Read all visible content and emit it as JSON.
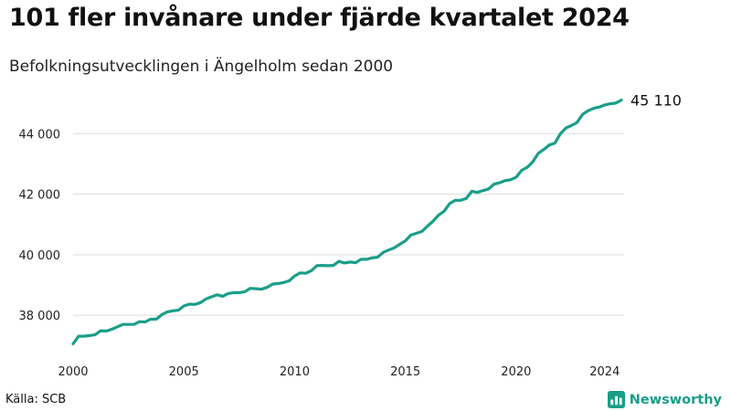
{
  "title": "101 fler invånare under fjärde kvartalet 2024",
  "subtitle": "Befolkningsutvecklingen i Ängelholm sedan 2000",
  "source": "Källa: SCB",
  "brand": {
    "name": "Newsworthy",
    "icon": "bar-chart-icon",
    "color": "#1a9e88"
  },
  "colors": {
    "line": "#1a9e88",
    "grid": "#dddddd"
  },
  "chart_data": {
    "type": "line",
    "title": "101 fler invånare under fjärde kvartalet 2024",
    "subtitle": "Befolkningsutvecklingen i Ängelholm sedan 2000",
    "xlabel": "",
    "ylabel": "",
    "x_ticks": [
      {
        "value": 2000,
        "label": "2000"
      },
      {
        "value": 2005,
        "label": "2005"
      },
      {
        "value": 2010,
        "label": "2010"
      },
      {
        "value": 2015,
        "label": "2015"
      },
      {
        "value": 2020,
        "label": "2020"
      },
      {
        "value": 2024,
        "label": "2024"
      }
    ],
    "y_ticks": [
      {
        "value": 38000,
        "label": "38 000"
      },
      {
        "value": 40000,
        "label": "40 000"
      },
      {
        "value": 42000,
        "label": "42 000"
      },
      {
        "value": 44000,
        "label": "44 000"
      }
    ],
    "xlim": [
      2000,
      2024.75
    ],
    "ylim": [
      36800,
      45400
    ],
    "grid": true,
    "end_label": "45 110",
    "series": [
      {
        "x": [
          2000.0,
          2000.25,
          2000.5,
          2000.75,
          2001.0,
          2001.25,
          2001.5,
          2001.75,
          2002.0,
          2002.25,
          2002.5,
          2002.75,
          2003.0,
          2003.25,
          2003.5,
          2003.75,
          2004.0,
          2004.25,
          2004.5,
          2004.75,
          2005.0,
          2005.25,
          2005.5,
          2005.75,
          2006.0,
          2006.25,
          2006.5,
          2006.75,
          2007.0,
          2007.25,
          2007.5,
          2007.75,
          2008.0,
          2008.25,
          2008.5,
          2008.75,
          2009.0,
          2009.25,
          2009.5,
          2009.75,
          2010.0,
          2010.25,
          2010.5,
          2010.75,
          2011.0,
          2011.25,
          2011.5,
          2011.75,
          2012.0,
          2012.25,
          2012.5,
          2012.75,
          2013.0,
          2013.25,
          2013.5,
          2013.75,
          2014.0,
          2014.25,
          2014.5,
          2014.75,
          2015.0,
          2015.25,
          2015.5,
          2015.75,
          2016.0,
          2016.25,
          2016.5,
          2016.75,
          2017.0,
          2017.25,
          2017.5,
          2017.75,
          2018.0,
          2018.25,
          2018.5,
          2018.75,
          2019.0,
          2019.25,
          2019.5,
          2019.75,
          2020.0,
          2020.25,
          2020.5,
          2020.75,
          2021.0,
          2021.25,
          2021.5,
          2021.75,
          2022.0,
          2022.25,
          2022.5,
          2022.75,
          2023.0,
          2023.25,
          2023.5,
          2023.75,
          2024.0,
          2024.25,
          2024.5,
          2024.75
        ],
        "values": [
          37060,
          37310,
          37310,
          37330,
          37360,
          37490,
          37480,
          37540,
          37620,
          37700,
          37700,
          37700,
          37790,
          37780,
          37870,
          37870,
          38020,
          38110,
          38150,
          38170,
          38310,
          38370,
          38360,
          38420,
          38540,
          38610,
          38680,
          38630,
          38720,
          38750,
          38750,
          38780,
          38890,
          38880,
          38860,
          38920,
          39030,
          39050,
          39080,
          39140,
          39300,
          39400,
          39390,
          39470,
          39640,
          39650,
          39640,
          39650,
          39780,
          39730,
          39760,
          39740,
          39850,
          39850,
          39900,
          39920,
          40080,
          40160,
          40230,
          40350,
          40460,
          40650,
          40710,
          40770,
          40950,
          41110,
          41310,
          41440,
          41690,
          41800,
          41800,
          41860,
          42100,
          42060,
          42120,
          42170,
          42330,
          42380,
          42450,
          42480,
          42560,
          42790,
          42890,
          43070,
          43350,
          43480,
          43630,
          43690,
          44000,
          44190,
          44270,
          44370,
          44640,
          44760,
          44840,
          44880,
          44950,
          44990,
          45010,
          45110
        ]
      }
    ]
  }
}
